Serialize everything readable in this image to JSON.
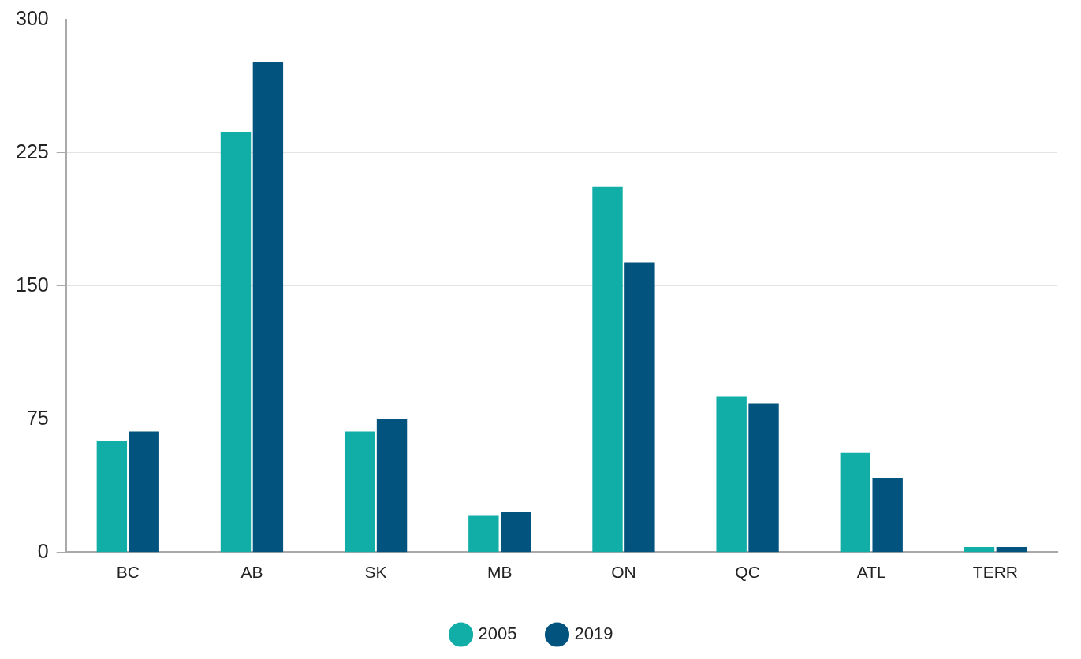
{
  "chart_data": {
    "type": "bar",
    "categories": [
      "BC",
      "AB",
      "SK",
      "MB",
      "ON",
      "QC",
      "ATL",
      "TERR"
    ],
    "series": [
      {
        "name": "2005",
        "color": "#10aea7",
        "values": [
          63,
          237,
          68,
          21,
          206,
          88,
          56,
          3
        ]
      },
      {
        "name": "2019",
        "color": "#02547f",
        "values": [
          68,
          276,
          75,
          23,
          163,
          84,
          42,
          3
        ]
      }
    ],
    "ylim": [
      0,
      300
    ],
    "yticks": [
      0,
      75,
      150,
      225,
      300
    ],
    "grid": true,
    "legend": "bottom"
  }
}
